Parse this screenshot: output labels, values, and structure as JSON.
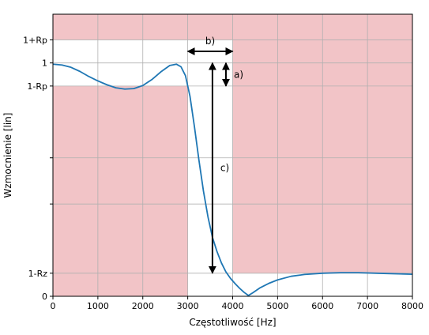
{
  "chart_data": {
    "type": "line",
    "xlabel": "Częstotliwość [Hz]",
    "ylabel": "Wzmocnienie [lin]",
    "xlim": [
      0,
      8000
    ],
    "ylim": [
      0,
      1.1
    ],
    "x_ticks": [
      0,
      1000,
      2000,
      3000,
      4000,
      5000,
      6000,
      7000,
      8000
    ],
    "x_tick_labels": [
      "0",
      "1000",
      "2000",
      "3000",
      "4000",
      "5000",
      "6000",
      "7000",
      "8000"
    ],
    "y_ticks": [
      0,
      0.09,
      0.36,
      0.54,
      0.82,
      0.91,
      1.0
    ],
    "y_tick_labels": [
      "0",
      "1-Rz",
      "",
      "",
      "1-Rp",
      "1",
      "1+Rp"
    ],
    "grid": true,
    "levels": {
      "one_plus_rp": 1.0,
      "one": 0.91,
      "one_minus_rp": 0.82,
      "one_minus_rz": 0.09
    },
    "passband_edge": 3000,
    "stopband_edge": 4000,
    "shaded_regions": [
      {
        "x": [
          0,
          3000
        ],
        "y": [
          0.82,
          0
        ]
      },
      {
        "x": [
          0,
          8000
        ],
        "y": [
          1.1,
          1.0
        ]
      },
      {
        "x": [
          4000,
          8000
        ],
        "y": [
          1.1,
          0.09
        ]
      }
    ],
    "colors": {
      "line": "#1f77b4",
      "shade": "#f2c4c7",
      "grid": "#b0b0b0"
    },
    "series": [
      {
        "x": [
          0,
          200,
          400,
          600,
          800,
          1000,
          1200,
          1400,
          1600,
          1800,
          2000,
          2200,
          2400,
          2600,
          2750,
          2850,
          2950,
          3050,
          3150,
          3250,
          3350,
          3450,
          3550,
          3650,
          3750,
          3850,
          3950,
          4050,
          4150,
          4250,
          4350,
          4450,
          4600,
          4800,
          5000,
          5300,
          5600,
          6000,
          6400,
          6800,
          7200,
          7600,
          8000
        ],
        "y": [
          0.905,
          0.902,
          0.893,
          0.877,
          0.857,
          0.84,
          0.825,
          0.813,
          0.808,
          0.81,
          0.822,
          0.845,
          0.875,
          0.9,
          0.905,
          0.895,
          0.86,
          0.78,
          0.66,
          0.53,
          0.41,
          0.31,
          0.23,
          0.175,
          0.13,
          0.095,
          0.07,
          0.05,
          0.032,
          0.016,
          0.003,
          0.014,
          0.032,
          0.05,
          0.064,
          0.078,
          0.085,
          0.09,
          0.092,
          0.092,
          0.09,
          0.088,
          0.086
        ]
      }
    ],
    "annotations": [
      {
        "label": "a)",
        "arrow": "vertical",
        "x": 3850,
        "y": [
          0.82,
          0.91
        ]
      },
      {
        "label": "b)",
        "arrow": "horizontal",
        "y": 0.955,
        "x": [
          3000,
          4000
        ]
      },
      {
        "label": "c)",
        "arrow": "vertical",
        "x": 3550,
        "y": [
          0.09,
          0.91
        ]
      }
    ]
  }
}
